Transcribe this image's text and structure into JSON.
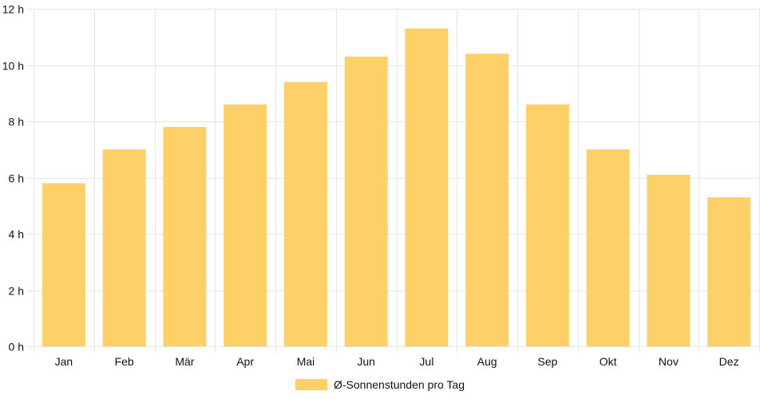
{
  "chart_data": {
    "type": "bar",
    "categories": [
      "Jan",
      "Feb",
      "Mär",
      "Apr",
      "Mai",
      "Jun",
      "Jul",
      "Aug",
      "Sep",
      "Okt",
      "Nov",
      "Dez"
    ],
    "series": [
      {
        "name": "Ø-Sonnenstunden pro Tag",
        "values": [
          5.8,
          7.0,
          7.8,
          8.6,
          9.4,
          10.3,
          11.3,
          10.4,
          8.6,
          7.0,
          6.1,
          5.3
        ],
        "color": "#fdd068"
      }
    ],
    "ylim": [
      0,
      12
    ],
    "yticks": [
      0,
      2,
      4,
      6,
      8,
      10,
      12
    ],
    "ytick_labels": [
      "0 h",
      "2 h",
      "4 h",
      "6 h",
      "8 h",
      "10 h",
      "12 h"
    ],
    "grid": true,
    "legend": "bottom-center",
    "gridline_color": "#e6e6e6"
  }
}
